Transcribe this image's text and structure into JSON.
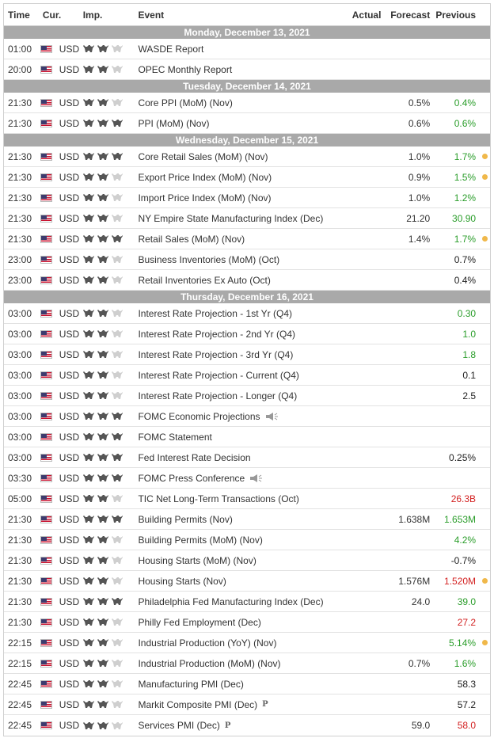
{
  "header": {
    "time": "Time",
    "cur": "Cur.",
    "imp": "Imp.",
    "event": "Event",
    "actual": "Actual",
    "forecast": "Forecast",
    "previous": "Previous"
  },
  "colors": {
    "day_bg": "#a9a9a9",
    "green": "#2a9d2a",
    "red": "#d32222",
    "dot": "#f0b84a"
  },
  "days": [
    {
      "label": "Monday, December 13, 2021",
      "events": [
        {
          "time": "01:00",
          "cur": "USD",
          "imp": 2,
          "event": "WASDE Report",
          "actual": "",
          "forecast": "",
          "previous": "",
          "prev_color": "black",
          "dot": false,
          "extra": ""
        },
        {
          "time": "20:00",
          "cur": "USD",
          "imp": 2,
          "event": "OPEC Monthly Report",
          "actual": "",
          "forecast": "",
          "previous": "",
          "prev_color": "black",
          "dot": false,
          "extra": ""
        }
      ]
    },
    {
      "label": "Tuesday, December 14, 2021",
      "events": [
        {
          "time": "21:30",
          "cur": "USD",
          "imp": 2,
          "event": "Core PPI (MoM) (Nov)",
          "actual": "",
          "forecast": "0.5%",
          "previous": "0.4%",
          "prev_color": "green",
          "dot": false,
          "extra": ""
        },
        {
          "time": "21:30",
          "cur": "USD",
          "imp": 3,
          "event": "PPI (MoM) (Nov)",
          "actual": "",
          "forecast": "0.6%",
          "previous": "0.6%",
          "prev_color": "green",
          "dot": false,
          "extra": ""
        }
      ]
    },
    {
      "label": "Wednesday, December 15, 2021",
      "events": [
        {
          "time": "21:30",
          "cur": "USD",
          "imp": 3,
          "event": "Core Retail Sales (MoM) (Nov)",
          "actual": "",
          "forecast": "1.0%",
          "previous": "1.7%",
          "prev_color": "green",
          "dot": true,
          "extra": ""
        },
        {
          "time": "21:30",
          "cur": "USD",
          "imp": 2,
          "event": "Export Price Index (MoM) (Nov)",
          "actual": "",
          "forecast": "0.9%",
          "previous": "1.5%",
          "prev_color": "green",
          "dot": true,
          "extra": ""
        },
        {
          "time": "21:30",
          "cur": "USD",
          "imp": 2,
          "event": "Import Price Index (MoM) (Nov)",
          "actual": "",
          "forecast": "1.0%",
          "previous": "1.2%",
          "prev_color": "green",
          "dot": false,
          "extra": ""
        },
        {
          "time": "21:30",
          "cur": "USD",
          "imp": 2,
          "event": "NY Empire State Manufacturing Index (Dec)",
          "actual": "",
          "forecast": "21.20",
          "previous": "30.90",
          "prev_color": "green",
          "dot": false,
          "extra": ""
        },
        {
          "time": "21:30",
          "cur": "USD",
          "imp": 3,
          "event": "Retail Sales (MoM) (Nov)",
          "actual": "",
          "forecast": "1.4%",
          "previous": "1.7%",
          "prev_color": "green",
          "dot": true,
          "extra": ""
        },
        {
          "time": "23:00",
          "cur": "USD",
          "imp": 2,
          "event": "Business Inventories (MoM) (Oct)",
          "actual": "",
          "forecast": "",
          "previous": "0.7%",
          "prev_color": "black",
          "dot": false,
          "extra": ""
        },
        {
          "time": "23:00",
          "cur": "USD",
          "imp": 2,
          "event": "Retail Inventories Ex Auto (Oct)",
          "actual": "",
          "forecast": "",
          "previous": "0.4%",
          "prev_color": "black",
          "dot": false,
          "extra": ""
        }
      ]
    },
    {
      "label": "Thursday, December 16, 2021",
      "events": [
        {
          "time": "03:00",
          "cur": "USD",
          "imp": 2,
          "event": "Interest Rate Projection - 1st Yr (Q4)",
          "actual": "",
          "forecast": "",
          "previous": "0.30",
          "prev_color": "green",
          "dot": false,
          "extra": ""
        },
        {
          "time": "03:00",
          "cur": "USD",
          "imp": 2,
          "event": "Interest Rate Projection - 2nd Yr (Q4)",
          "actual": "",
          "forecast": "",
          "previous": "1.0",
          "prev_color": "green",
          "dot": false,
          "extra": ""
        },
        {
          "time": "03:00",
          "cur": "USD",
          "imp": 2,
          "event": "Interest Rate Projection - 3rd Yr (Q4)",
          "actual": "",
          "forecast": "",
          "previous": "1.8",
          "prev_color": "green",
          "dot": false,
          "extra": ""
        },
        {
          "time": "03:00",
          "cur": "USD",
          "imp": 2,
          "event": "Interest Rate Projection - Current (Q4)",
          "actual": "",
          "forecast": "",
          "previous": "0.1",
          "prev_color": "black",
          "dot": false,
          "extra": ""
        },
        {
          "time": "03:00",
          "cur": "USD",
          "imp": 2,
          "event": "Interest Rate Projection - Longer (Q4)",
          "actual": "",
          "forecast": "",
          "previous": "2.5",
          "prev_color": "black",
          "dot": false,
          "extra": ""
        },
        {
          "time": "03:00",
          "cur": "USD",
          "imp": 3,
          "event": "FOMC Economic Projections",
          "actual": "",
          "forecast": "",
          "previous": "",
          "prev_color": "black",
          "dot": false,
          "extra": "speaker"
        },
        {
          "time": "03:00",
          "cur": "USD",
          "imp": 3,
          "event": "FOMC Statement",
          "actual": "",
          "forecast": "",
          "previous": "",
          "prev_color": "black",
          "dot": false,
          "extra": ""
        },
        {
          "time": "03:00",
          "cur": "USD",
          "imp": 3,
          "event": "Fed Interest Rate Decision",
          "actual": "",
          "forecast": "",
          "previous": "0.25%",
          "prev_color": "black",
          "dot": false,
          "extra": ""
        },
        {
          "time": "03:30",
          "cur": "USD",
          "imp": 3,
          "event": "FOMC Press Conference",
          "actual": "",
          "forecast": "",
          "previous": "",
          "prev_color": "black",
          "dot": false,
          "extra": "speaker"
        },
        {
          "time": "05:00",
          "cur": "USD",
          "imp": 2,
          "event": "TIC Net Long-Term Transactions (Oct)",
          "actual": "",
          "forecast": "",
          "previous": "26.3B",
          "prev_color": "red",
          "dot": false,
          "extra": ""
        },
        {
          "time": "21:30",
          "cur": "USD",
          "imp": 3,
          "event": "Building Permits (Nov)",
          "actual": "",
          "forecast": "1.638M",
          "previous": "1.653M",
          "prev_color": "green",
          "dot": false,
          "extra": ""
        },
        {
          "time": "21:30",
          "cur": "USD",
          "imp": 2,
          "event": "Building Permits (MoM) (Nov)",
          "actual": "",
          "forecast": "",
          "previous": "4.2%",
          "prev_color": "green",
          "dot": false,
          "extra": ""
        },
        {
          "time": "21:30",
          "cur": "USD",
          "imp": 2,
          "event": "Housing Starts (MoM) (Nov)",
          "actual": "",
          "forecast": "",
          "previous": "-0.7%",
          "prev_color": "black",
          "dot": false,
          "extra": ""
        },
        {
          "time": "21:30",
          "cur": "USD",
          "imp": 2,
          "event": "Housing Starts (Nov)",
          "actual": "",
          "forecast": "1.576M",
          "previous": "1.520M",
          "prev_color": "red",
          "dot": true,
          "extra": ""
        },
        {
          "time": "21:30",
          "cur": "USD",
          "imp": 3,
          "event": "Philadelphia Fed Manufacturing Index (Dec)",
          "actual": "",
          "forecast": "24.0",
          "previous": "39.0",
          "prev_color": "green",
          "dot": false,
          "extra": ""
        },
        {
          "time": "21:30",
          "cur": "USD",
          "imp": 2,
          "event": "Philly Fed Employment (Dec)",
          "actual": "",
          "forecast": "",
          "previous": "27.2",
          "prev_color": "red",
          "dot": false,
          "extra": ""
        },
        {
          "time": "22:15",
          "cur": "USD",
          "imp": 2,
          "event": "Industrial Production (YoY) (Nov)",
          "actual": "",
          "forecast": "",
          "previous": "5.14%",
          "prev_color": "green",
          "dot": true,
          "extra": ""
        },
        {
          "time": "22:15",
          "cur": "USD",
          "imp": 2,
          "event": "Industrial Production (MoM) (Nov)",
          "actual": "",
          "forecast": "0.7%",
          "previous": "1.6%",
          "prev_color": "green",
          "dot": false,
          "extra": ""
        },
        {
          "time": "22:45",
          "cur": "USD",
          "imp": 2,
          "event": "Manufacturing PMI (Dec)",
          "actual": "",
          "forecast": "",
          "previous": "58.3",
          "prev_color": "black",
          "dot": false,
          "extra": ""
        },
        {
          "time": "22:45",
          "cur": "USD",
          "imp": 2,
          "event": "Markit Composite PMI (Dec)",
          "actual": "",
          "forecast": "",
          "previous": "57.2",
          "prev_color": "black",
          "dot": false,
          "extra": "preliminary"
        },
        {
          "time": "22:45",
          "cur": "USD",
          "imp": 2,
          "event": "Services PMI (Dec)",
          "actual": "",
          "forecast": "59.0",
          "previous": "58.0",
          "prev_color": "red",
          "dot": false,
          "extra": "preliminary"
        }
      ]
    }
  ],
  "icons": {
    "importance": "bull-icon",
    "flag": "us-flag-icon",
    "speech": "speaker-icon",
    "preliminary": "preliminary-icon",
    "alert": "alert-dot-icon"
  },
  "preliminary_mark": "P"
}
